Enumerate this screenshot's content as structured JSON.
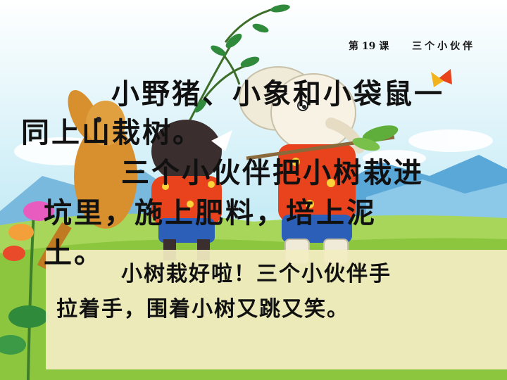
{
  "header": {
    "lesson_number": "第 19 课",
    "lesson_title": "三个小伙伴"
  },
  "passage": {
    "paragraph1_line1": "小野猪、小象和小袋鼠一",
    "paragraph1_line2": "同上山栽树。",
    "paragraph2_line1": "三个小伙伴把小树栽进",
    "paragraph2_line2": "坑里，施上肥料，培上泥",
    "paragraph2_line3": "土。",
    "paragraph3_line1": "小树栽好啦！三个小伙伴手",
    "paragraph3_line2": "拉着手，围着小树又跳又笑。"
  },
  "illustration": {
    "subject": "kangaroo, boar and elephant carrying a sapling on a hillside",
    "colors": {
      "sky": "#c8ecf6",
      "mountain": "#5aa8d8",
      "grass": "#8cc63e",
      "kangaroo": "#d8902f",
      "boar": "#3a2e2e",
      "elephant": "#f0ead8",
      "shirt_red": "#e8431c",
      "shorts_blue": "#2b5fb8",
      "panel": "#f3edc2"
    }
  }
}
